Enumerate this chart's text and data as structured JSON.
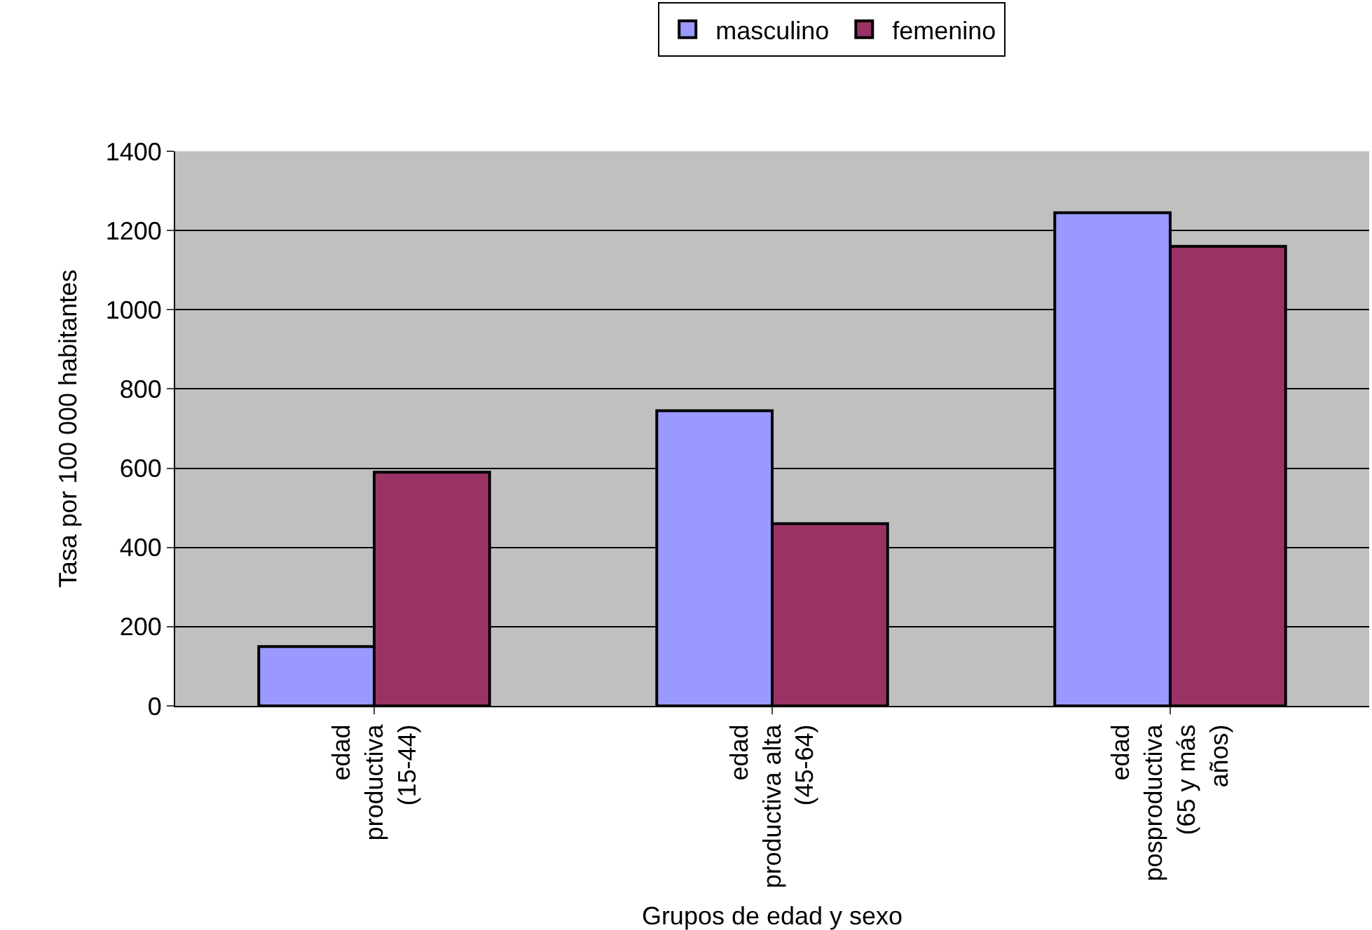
{
  "chart_data": {
    "type": "bar",
    "xlabel": "Grupos de edad y sexo",
    "ylabel": "Tasa por 100 000 habitantes",
    "categories": [
      "edad\nproductiva\n(15-44)",
      "edad\nproductiva alta\n(45-64)",
      "edad\nposproductiva\n(65 y más\naños)"
    ],
    "series": [
      {
        "name": "masculino",
        "color": "#9999ff",
        "values": [
          150,
          745,
          1245
        ]
      },
      {
        "name": "femenino",
        "color": "#993366",
        "values": [
          590,
          460,
          1160
        ]
      }
    ],
    "ylim": [
      0,
      1400
    ],
    "yticks": [
      0,
      200,
      400,
      600,
      800,
      1000,
      1200,
      1400
    ],
    "grid": "y",
    "legend": "top"
  }
}
